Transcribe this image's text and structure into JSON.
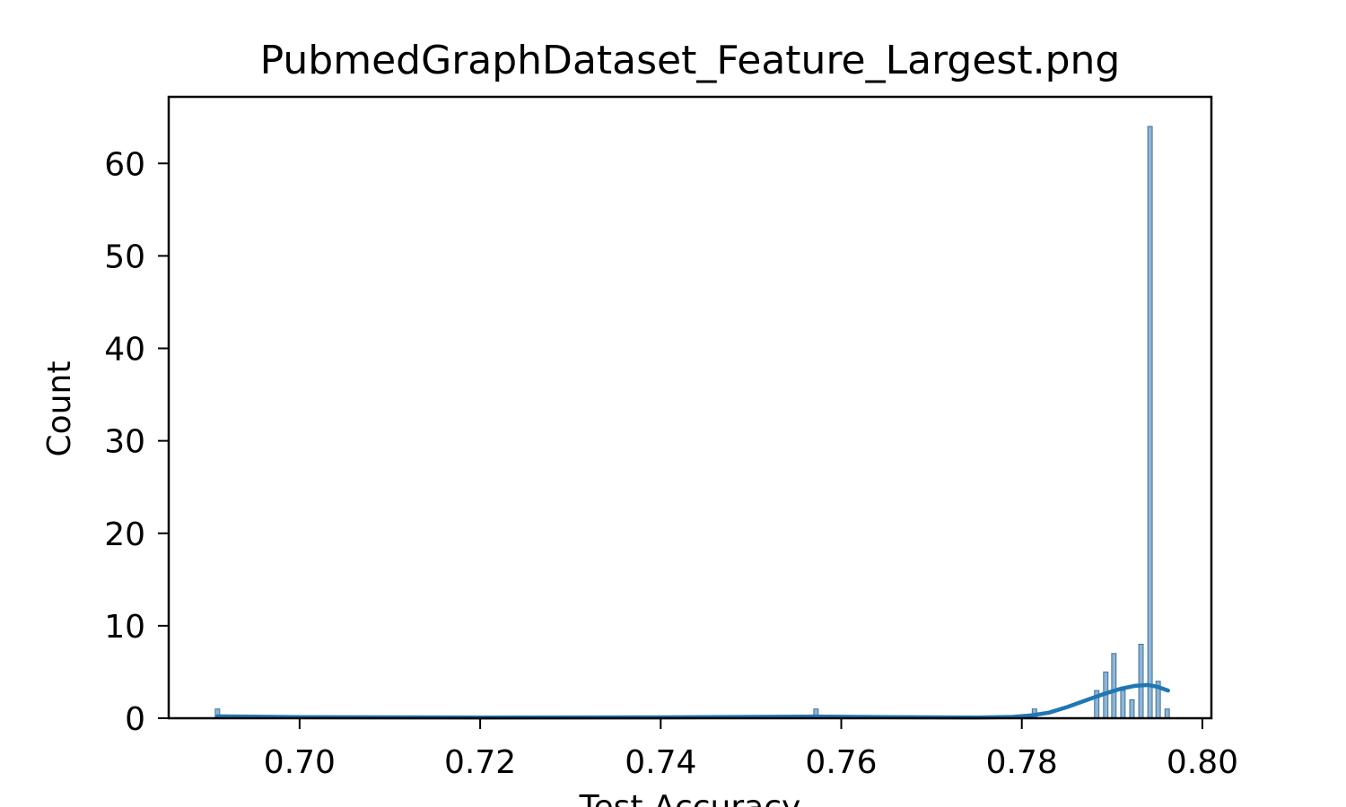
{
  "chart_data": {
    "type": "histogram",
    "title": "PubmedGraphDataset_Feature_Largest.png",
    "xlabel": "Test Accuracy",
    "ylabel": "Count",
    "xlim": [
      0.6855,
      0.801
    ],
    "ylim": [
      0,
      67.2
    ],
    "xticks": [
      0.7,
      0.72,
      0.74,
      0.76,
      0.78,
      0.8
    ],
    "xtick_labels": [
      "0.70",
      "0.72",
      "0.74",
      "0.76",
      "0.78",
      "0.80"
    ],
    "yticks": [
      0,
      10,
      20,
      30,
      40,
      50,
      60
    ],
    "ytick_labels": [
      "0",
      "10",
      "20",
      "30",
      "40",
      "50",
      "60"
    ],
    "grid": false,
    "bins": [
      {
        "x": 0.6909,
        "count": 1
      },
      {
        "x": 0.7572,
        "count": 1
      },
      {
        "x": 0.7814,
        "count": 1
      },
      {
        "x": 0.7883,
        "count": 3
      },
      {
        "x": 0.7893,
        "count": 5
      },
      {
        "x": 0.7902,
        "count": 7
      },
      {
        "x": 0.7912,
        "count": 3
      },
      {
        "x": 0.7922,
        "count": 2
      },
      {
        "x": 0.7932,
        "count": 8
      },
      {
        "x": 0.7942,
        "count": 64
      },
      {
        "x": 0.7951,
        "count": 4
      },
      {
        "x": 0.7961,
        "count": 1
      }
    ],
    "bin_width": 0.00049,
    "kde": [
      [
        0.6909,
        0.2
      ],
      [
        0.7,
        0.12
      ],
      [
        0.72,
        0.08
      ],
      [
        0.74,
        0.1
      ],
      [
        0.757,
        0.18
      ],
      [
        0.765,
        0.12
      ],
      [
        0.775,
        0.08
      ],
      [
        0.779,
        0.15
      ],
      [
        0.781,
        0.3
      ],
      [
        0.783,
        0.6
      ],
      [
        0.785,
        1.2
      ],
      [
        0.787,
        1.9
      ],
      [
        0.789,
        2.6
      ],
      [
        0.791,
        3.2
      ],
      [
        0.7925,
        3.5
      ],
      [
        0.794,
        3.6
      ],
      [
        0.795,
        3.4
      ],
      [
        0.7962,
        3.0
      ]
    ],
    "colors": {
      "bar_fill": "#8eb5d6",
      "bar_edge": "#3f6f97",
      "kde_line": "#1f77b4"
    }
  }
}
